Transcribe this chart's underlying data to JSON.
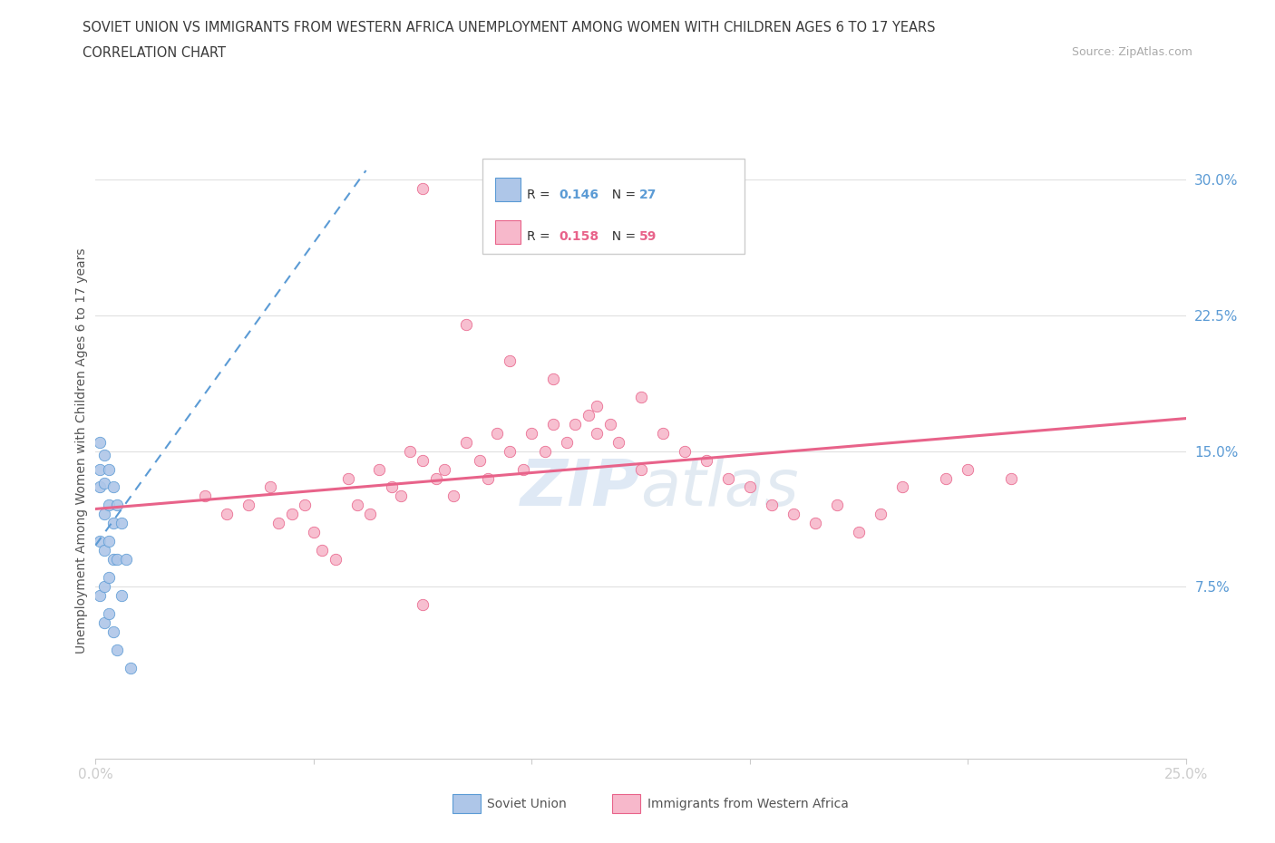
{
  "title_line1": "SOVIET UNION VS IMMIGRANTS FROM WESTERN AFRICA UNEMPLOYMENT AMONG WOMEN WITH CHILDREN AGES 6 TO 17 YEARS",
  "title_line2": "CORRELATION CHART",
  "source": "Source: ZipAtlas.com",
  "ylabel": "Unemployment Among Women with Children Ages 6 to 17 years",
  "xlim": [
    0.0,
    0.25
  ],
  "ylim": [
    -0.02,
    0.32
  ],
  "ytick_positions_right": [
    0.075,
    0.15,
    0.225,
    0.3
  ],
  "ytick_labels_right": [
    "7.5%",
    "15.0%",
    "22.5%",
    "30.0%"
  ],
  "grid_color": "#e0e0e0",
  "background_color": "#ffffff",
  "blue_fill": "#aec6e8",
  "blue_edge": "#5b9bd5",
  "pink_fill": "#f7b8cb",
  "pink_edge": "#e8638a",
  "pink_line_color": "#e8638a",
  "blue_line_color": "#5b9bd5",
  "title_color": "#3a3a3a",
  "axis_tick_color": "#5b9bd5",
  "source_color": "#aaaaaa",
  "ylabel_color": "#555555",
  "legend_text_color": "#333333",
  "legend_R1_color": "#5b9bd5",
  "legend_N1_color": "#5b9bd5",
  "legend_R2_color": "#e8638a",
  "legend_N2_color": "#e8638a",
  "soviet_x": [
    0.001,
    0.001,
    0.001,
    0.001,
    0.001,
    0.002,
    0.002,
    0.002,
    0.002,
    0.002,
    0.002,
    0.003,
    0.003,
    0.003,
    0.003,
    0.003,
    0.004,
    0.004,
    0.004,
    0.004,
    0.005,
    0.005,
    0.005,
    0.006,
    0.006,
    0.007,
    0.008
  ],
  "soviet_y": [
    0.155,
    0.14,
    0.13,
    0.1,
    0.07,
    0.148,
    0.132,
    0.115,
    0.095,
    0.075,
    0.055,
    0.14,
    0.12,
    0.1,
    0.08,
    0.06,
    0.13,
    0.11,
    0.09,
    0.05,
    0.12,
    0.09,
    0.04,
    0.11,
    0.07,
    0.09,
    0.03
  ],
  "wa_x": [
    0.025,
    0.03,
    0.035,
    0.04,
    0.042,
    0.045,
    0.048,
    0.05,
    0.052,
    0.055,
    0.058,
    0.06,
    0.063,
    0.065,
    0.068,
    0.07,
    0.072,
    0.075,
    0.078,
    0.08,
    0.082,
    0.085,
    0.088,
    0.09,
    0.092,
    0.095,
    0.098,
    0.1,
    0.103,
    0.105,
    0.108,
    0.11,
    0.113,
    0.115,
    0.118,
    0.12,
    0.125,
    0.13,
    0.135,
    0.14,
    0.145,
    0.15,
    0.155,
    0.16,
    0.165,
    0.17,
    0.175,
    0.18,
    0.185,
    0.195,
    0.2,
    0.075,
    0.085,
    0.095,
    0.105,
    0.115,
    0.125,
    0.075,
    0.21
  ],
  "wa_y": [
    0.125,
    0.115,
    0.12,
    0.13,
    0.11,
    0.115,
    0.12,
    0.105,
    0.095,
    0.09,
    0.135,
    0.12,
    0.115,
    0.14,
    0.13,
    0.125,
    0.15,
    0.145,
    0.135,
    0.14,
    0.125,
    0.155,
    0.145,
    0.135,
    0.16,
    0.15,
    0.14,
    0.16,
    0.15,
    0.165,
    0.155,
    0.165,
    0.17,
    0.16,
    0.165,
    0.155,
    0.14,
    0.16,
    0.15,
    0.145,
    0.135,
    0.13,
    0.12,
    0.115,
    0.11,
    0.12,
    0.105,
    0.115,
    0.13,
    0.135,
    0.14,
    0.295,
    0.22,
    0.2,
    0.19,
    0.175,
    0.18,
    0.065,
    0.135
  ],
  "wa_line_x0": 0.0,
  "wa_line_x1": 0.25,
  "wa_line_y0": 0.118,
  "wa_line_y1": 0.168,
  "su_line_x0": 0.0,
  "su_line_x1": 0.062,
  "su_line_y0": 0.098,
  "su_line_y1": 0.305
}
